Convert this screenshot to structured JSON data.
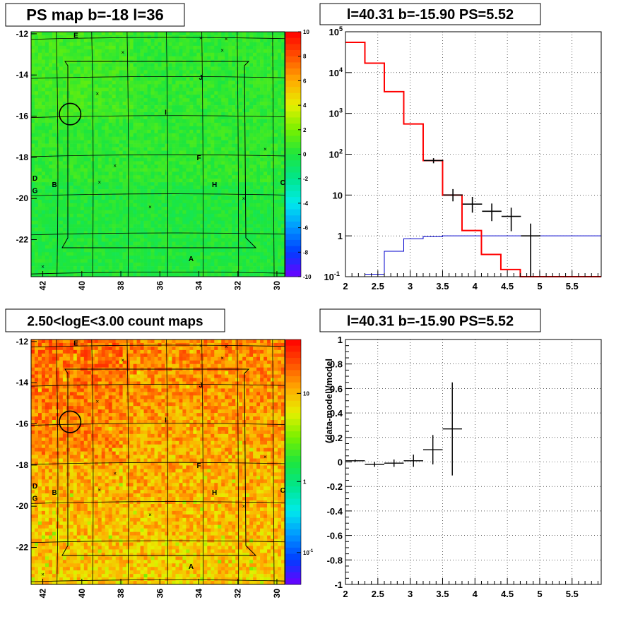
{
  "chart_data": [
    {
      "type": "heatmap",
      "title": "PS map b=-18 l=36",
      "x_ticks": [
        "42",
        "40",
        "38",
        "36",
        "34",
        "32",
        "30"
      ],
      "x_range": [
        42.6,
        29.6
      ],
      "y_ticks": [
        "-12",
        "-14",
        "-16",
        "-18",
        "-20",
        "-22"
      ],
      "y_range": [
        -23.8,
        -11.9
      ],
      "colorbar_ticks": [
        "10",
        "8",
        "6",
        "4",
        "2",
        "0",
        "-2",
        "-4",
        "-6",
        "-8",
        "-10"
      ],
      "colorbar_range": [
        -10,
        10
      ],
      "field_value_range": [
        -0.5,
        1.5
      ],
      "source_labels": [
        {
          "text": "E",
          "l": 40.3,
          "b": -12.05
        },
        {
          "text": "J",
          "l": 33.9,
          "b": -14.1
        },
        {
          "text": "I",
          "l": 35.7,
          "b": -15.8
        },
        {
          "text": "F",
          "l": 34.0,
          "b": -18.0
        },
        {
          "text": "D",
          "l": 42.4,
          "b": -19.0
        },
        {
          "text": "B",
          "l": 41.4,
          "b": -19.3
        },
        {
          "text": "H",
          "l": 33.2,
          "b": -19.3
        },
        {
          "text": "C",
          "l": 29.7,
          "b": -19.2
        },
        {
          "text": "G",
          "l": 42.4,
          "b": -19.6
        },
        {
          "text": "A",
          "l": 34.4,
          "b": -22.9
        }
      ],
      "crosses": [
        [
          33.9,
          -12.2
        ],
        [
          32.6,
          -12.25
        ],
        [
          32.8,
          -12.8
        ],
        [
          37.9,
          -12.9
        ],
        [
          39.2,
          -14.9
        ],
        [
          30.6,
          -17.6
        ],
        [
          38.3,
          -18.4
        ],
        [
          39.1,
          -19.2
        ],
        [
          36.5,
          -20.4
        ],
        [
          31.7,
          -20.0
        ],
        [
          42.0,
          -23.3
        ]
      ],
      "circle": {
        "l": 40.6,
        "b": -15.9,
        "r_deg": 0.55
      }
    },
    {
      "type": "line",
      "title": "l=40.31 b=-15.90 PS=5.52",
      "x_ticks": [
        "2",
        "2.5",
        "3",
        "3.5",
        "4",
        "4.5",
        "5",
        "5.5"
      ],
      "xlim": [
        2,
        5.95
      ],
      "y_scale": "log",
      "y_ticks": [
        "10^5",
        "10^4",
        "10^3",
        "10^2",
        "10",
        "1",
        "10^-1"
      ],
      "ylim": [
        0.1,
        100000
      ],
      "model_step_red": {
        "edges": [
          2.0,
          2.3,
          2.6,
          2.9,
          3.2,
          3.5,
          3.8,
          4.1,
          4.4,
          4.7,
          5.0,
          5.95
        ],
        "values": [
          55000,
          17000,
          3400,
          550,
          70,
          10,
          1.35,
          0.35,
          0.15,
          0.1,
          0.1
        ]
      },
      "model_step_blue": {
        "edges": [
          2.3,
          2.6,
          2.9,
          3.2,
          3.5,
          5.95
        ],
        "values": [
          0.115,
          0.42,
          0.85,
          0.96,
          1.0
        ]
      },
      "data_points": [
        {
          "x": 3.36,
          "y": 70,
          "xerr": 0.15,
          "ylo": 60,
          "yhi": 80
        },
        {
          "x": 3.66,
          "y": 10,
          "xerr": 0.15,
          "ylo": 7,
          "yhi": 14
        },
        {
          "x": 3.96,
          "y": 6,
          "xerr": 0.15,
          "ylo": 3.7,
          "yhi": 9
        },
        {
          "x": 4.26,
          "y": 4,
          "xerr": 0.15,
          "ylo": 2.3,
          "yhi": 6.2
        },
        {
          "x": 4.56,
          "y": 3,
          "xerr": 0.15,
          "ylo": 1.3,
          "yhi": 4.9
        },
        {
          "x": 4.86,
          "y": 1,
          "xerr": 0.15,
          "ylo": 0.1,
          "yhi": 2.0
        }
      ]
    },
    {
      "type": "heatmap",
      "title": "2.50<logE<3.00 count maps",
      "x_ticks": [
        "42",
        "40",
        "38",
        "36",
        "34",
        "32",
        "30"
      ],
      "y_ticks": [
        "-12",
        "-14",
        "-16",
        "-18",
        "-20",
        "-22"
      ],
      "colorbar_ticks": [
        "10",
        "1",
        "10^-1"
      ],
      "colorbar_scale": "log"
    },
    {
      "type": "line",
      "title": "l=40.31 b=-15.90 PS=5.52",
      "ylabel": "(data-model)/model",
      "x_ticks": [
        "2",
        "2.5",
        "3",
        "3.5",
        "4",
        "4.5",
        "5",
        "5.5"
      ],
      "xlim": [
        2,
        5.95
      ],
      "y_ticks": [
        "1",
        "0.8",
        "0.6",
        "0.4",
        "0.2",
        "0",
        "-0.2",
        "-0.4",
        "-0.6",
        "-0.8",
        "-1"
      ],
      "ylim": [
        -1,
        1
      ],
      "data_points": [
        {
          "x": 2.15,
          "y": 0.01,
          "xerr": 0.15,
          "yerr": 0.01
        },
        {
          "x": 2.45,
          "y": -0.02,
          "xerr": 0.15,
          "yerr": 0.02
        },
        {
          "x": 2.75,
          "y": -0.01,
          "xerr": 0.15,
          "yerr": 0.03
        },
        {
          "x": 3.05,
          "y": 0.01,
          "xerr": 0.15,
          "yerr": 0.05
        },
        {
          "x": 3.35,
          "y": 0.1,
          "xerr": 0.15,
          "yerr": 0.12
        },
        {
          "x": 3.65,
          "y": 0.27,
          "xerr": 0.15,
          "yerr": 0.38
        }
      ]
    }
  ]
}
